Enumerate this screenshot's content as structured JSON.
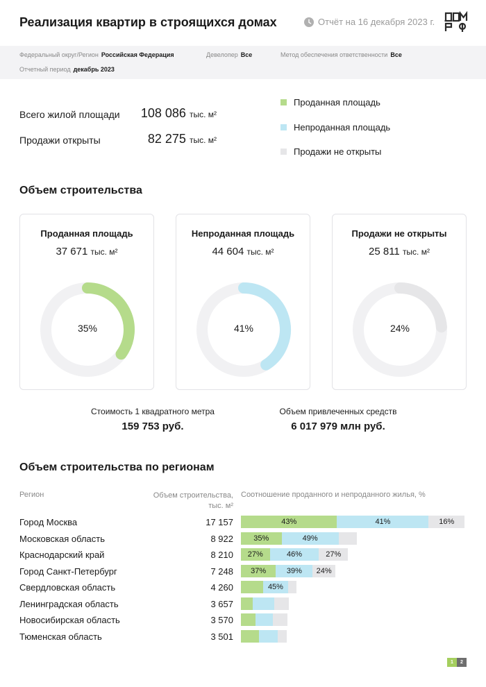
{
  "header": {
    "title": "Реализация квартир в строящихся домах",
    "report_date": "Отчёт на 16 декабря 2023 г."
  },
  "filters": {
    "region_label": "Федеральный округ/Регион",
    "region_value": "Российская Федерация",
    "developer_label": "Девелопер",
    "developer_value": "Все",
    "method_label": "Метод обеспечения ответственности",
    "method_value": "Все",
    "period_label": "Отчетный период",
    "period_value": "декабрь 2023"
  },
  "totals": {
    "living_area_label": "Всего жилой площади",
    "living_area_value": "108 086",
    "sales_open_label": "Продажи открыты",
    "sales_open_value": "82 275",
    "unit": "тыс. м²"
  },
  "legend": {
    "sold": "Проданная площадь",
    "unsold": "Непроданная площадь",
    "not_open": "Продажи не открыты"
  },
  "colors": {
    "sold": "#b5db8b",
    "unsold": "#bde6f3",
    "not_open": "#e6e6e8",
    "ring_bg": "#f1f1f3"
  },
  "construction": {
    "title": "Объем строительства",
    "cards": [
      {
        "title": "Проданная площадь",
        "value": "37 671",
        "unit": "тыс. м²",
        "percent": 35,
        "percent_label": "35%",
        "color": "#b5db8b"
      },
      {
        "title": "Непроданная площадь",
        "value": "44 604",
        "unit": "тыс. м²",
        "percent": 41,
        "percent_label": "41%",
        "color": "#bde6f3"
      },
      {
        "title": "Продажи не открыты",
        "value": "25 811",
        "unit": "тыс. м²",
        "percent": 24,
        "percent_label": "24%",
        "color": "#e6e6e8"
      }
    ]
  },
  "kpis": {
    "price_label": "Стоимость 1 квадратного метра",
    "price_value": "159 753 руб.",
    "funds_label": "Объем привлеченных средств",
    "funds_value": "6 017 979 млн руб."
  },
  "regions": {
    "title": "Объем строительства по регионам",
    "col_region": "Регион",
    "col_volume_1": "Объем строительства,",
    "col_volume_2": "тыс. м²",
    "col_ratio": "Соотношение проданного и непроданного жилья, %",
    "max_volume": 17157,
    "rows": [
      {
        "name": "Город Москва",
        "volume": 17157,
        "volume_label": "17 157",
        "sold": 43,
        "unsold": 41,
        "not_open": 16,
        "sold_label": "43%",
        "unsold_label": "41%",
        "not_open_label": "16%"
      },
      {
        "name": "Московская область",
        "volume": 8922,
        "volume_label": "8 922",
        "sold": 35,
        "unsold": 49,
        "not_open": 16,
        "sold_label": "35%",
        "unsold_label": "49%",
        "not_open_label": ""
      },
      {
        "name": "Краснодарский край",
        "volume": 8210,
        "volume_label": "8 210",
        "sold": 27,
        "unsold": 46,
        "not_open": 27,
        "sold_label": "27%",
        "unsold_label": "46%",
        "not_open_label": "27%"
      },
      {
        "name": "Город Санкт-Петербург",
        "volume": 7248,
        "volume_label": "7 248",
        "sold": 37,
        "unsold": 39,
        "not_open": 24,
        "sold_label": "37%",
        "unsold_label": "39%",
        "not_open_label": "24%"
      },
      {
        "name": "Свердловская область",
        "volume": 4260,
        "volume_label": "4 260",
        "sold": 40,
        "unsold": 45,
        "not_open": 15,
        "sold_label": "",
        "unsold_label": "45%",
        "not_open_label": ""
      },
      {
        "name": "Ленинградская область",
        "volume": 3657,
        "volume_label": "3 657",
        "sold": 25,
        "unsold": 45,
        "not_open": 30,
        "sold_label": "",
        "unsold_label": "",
        "not_open_label": ""
      },
      {
        "name": "Новосибирская область",
        "volume": 3570,
        "volume_label": "3 570",
        "sold": 32,
        "unsold": 36,
        "not_open": 32,
        "sold_label": "",
        "unsold_label": "",
        "not_open_label": ""
      },
      {
        "name": "Тюменская область",
        "volume": 3501,
        "volume_label": "3 501",
        "sold": 40,
        "unsold": 40,
        "not_open": 20,
        "sold_label": "",
        "unsold_label": "",
        "not_open_label": ""
      }
    ]
  },
  "pager": {
    "current": "1",
    "total": "2"
  }
}
